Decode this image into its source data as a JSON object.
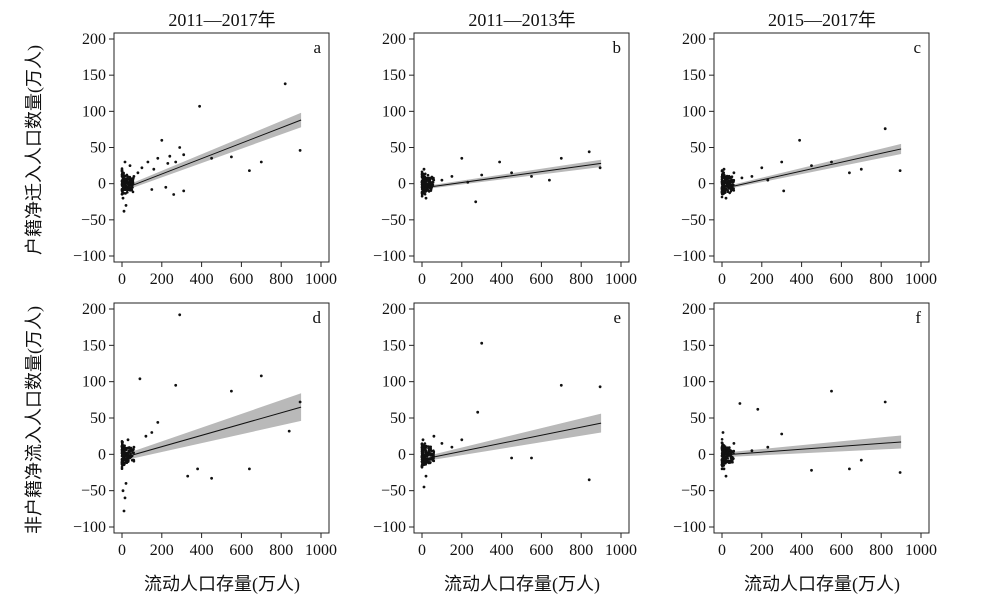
{
  "col_titles": [
    "2011—2017年",
    "2011—2013年",
    "2015—2017年"
  ],
  "row_ylabels": [
    "户籍净迁入人口数量(万人)",
    "非户籍净流入人口数量(万人)"
  ],
  "xlabel": "流动人口存量(万人)",
  "chart_data": [
    {
      "type": "scatter",
      "panel": "a",
      "title": "2011—2017年",
      "xlabel": "",
      "ylabel": "户籍净迁入人口数量(万人)",
      "xlim": [
        0,
        1000
      ],
      "ylim": [
        -100,
        200
      ],
      "xticks": [
        0,
        200,
        400,
        600,
        800,
        1000
      ],
      "yticks": [
        -100,
        -50,
        0,
        50,
        100,
        150,
        200
      ],
      "points": [
        [
          390,
          107
        ],
        [
          820,
          138
        ],
        [
          200,
          60
        ],
        [
          290,
          50
        ],
        [
          895,
          46
        ],
        [
          270,
          30
        ],
        [
          240,
          38
        ],
        [
          310,
          40
        ],
        [
          230,
          28
        ],
        [
          180,
          35
        ],
        [
          130,
          30
        ],
        [
          160,
          20
        ],
        [
          100,
          22
        ],
        [
          450,
          35
        ],
        [
          550,
          37
        ],
        [
          640,
          18
        ],
        [
          700,
          30
        ],
        [
          310,
          -10
        ],
        [
          260,
          -15
        ],
        [
          220,
          -5
        ],
        [
          150,
          -8
        ],
        [
          80,
          15
        ],
        [
          60,
          10
        ],
        [
          40,
          25
        ],
        [
          10,
          -38
        ],
        [
          20,
          -30
        ],
        [
          5,
          -20
        ],
        [
          15,
          30
        ]
      ],
      "fit": {
        "x": [
          0,
          900
        ],
        "y": [
          -8,
          88
        ],
        "ci_lower": [
          -11,
          78
        ],
        "ci_upper": [
          -5,
          98
        ]
      },
      "grid": false
    },
    {
      "type": "scatter",
      "panel": "b",
      "title": "2011—2013年",
      "xlabel": "",
      "ylabel": "",
      "xlim": [
        0,
        1000
      ],
      "ylim": [
        -100,
        200
      ],
      "xticks": [
        0,
        200,
        400,
        600,
        800,
        1000
      ],
      "yticks": [
        -100,
        -50,
        0,
        50,
        100,
        150,
        200
      ],
      "points": [
        [
          840,
          44
        ],
        [
          700,
          35
        ],
        [
          200,
          35
        ],
        [
          390,
          30
        ],
        [
          270,
          -25
        ],
        [
          895,
          22
        ],
        [
          640,
          5
        ],
        [
          150,
          10
        ],
        [
          300,
          12
        ],
        [
          100,
          5
        ],
        [
          50,
          8
        ],
        [
          20,
          -20
        ],
        [
          10,
          20
        ],
        [
          550,
          10
        ],
        [
          230,
          2
        ],
        [
          450,
          15
        ]
      ],
      "fit": {
        "x": [
          0,
          900
        ],
        "y": [
          -6,
          28
        ],
        "ci_lower": [
          -8,
          23
        ],
        "ci_upper": [
          -4,
          33
        ]
      },
      "grid": false
    },
    {
      "type": "scatter",
      "panel": "c",
      "title": "2015—2017年",
      "xlabel": "",
      "ylabel": "",
      "xlim": [
        0,
        1000
      ],
      "ylim": [
        -100,
        200
      ],
      "xticks": [
        0,
        200,
        400,
        600,
        800,
        1000
      ],
      "yticks": [
        -100,
        -50,
        0,
        50,
        100,
        150,
        200
      ],
      "points": [
        [
          390,
          60
        ],
        [
          820,
          76
        ],
        [
          300,
          30
        ],
        [
          895,
          18
        ],
        [
          640,
          15
        ],
        [
          700,
          20
        ],
        [
          310,
          -10
        ],
        [
          200,
          22
        ],
        [
          150,
          10
        ],
        [
          100,
          8
        ],
        [
          60,
          15
        ],
        [
          20,
          -20
        ],
        [
          10,
          20
        ],
        [
          230,
          5
        ],
        [
          450,
          25
        ],
        [
          550,
          30
        ]
      ],
      "fit": {
        "x": [
          0,
          900
        ],
        "y": [
          -7,
          48
        ],
        "ci_lower": [
          -9,
          41
        ],
        "ci_upper": [
          -5,
          55
        ]
      },
      "grid": false
    },
    {
      "type": "scatter",
      "panel": "d",
      "title": "",
      "xlabel": "流动人口存量(万人)",
      "ylabel": "非户籍净流入人口数量(万人)",
      "xlim": [
        0,
        1000
      ],
      "ylim": [
        -100,
        200
      ],
      "xticks": [
        0,
        200,
        400,
        600,
        800,
        1000
      ],
      "yticks": [
        -100,
        -50,
        0,
        50,
        100,
        150,
        200
      ],
      "points": [
        [
          290,
          192
        ],
        [
          90,
          104
        ],
        [
          270,
          95
        ],
        [
          550,
          87
        ],
        [
          700,
          108
        ],
        [
          895,
          72
        ],
        [
          840,
          32
        ],
        [
          180,
          44
        ],
        [
          150,
          30
        ],
        [
          120,
          25
        ],
        [
          640,
          -20
        ],
        [
          450,
          -33
        ],
        [
          330,
          -30
        ],
        [
          380,
          -20
        ],
        [
          30,
          20
        ],
        [
          10,
          -78
        ],
        [
          15,
          -60
        ],
        [
          5,
          -50
        ],
        [
          20,
          -40
        ],
        [
          60,
          10
        ]
      ],
      "fit": {
        "x": [
          0,
          900
        ],
        "y": [
          -5,
          65
        ],
        "ci_lower": [
          -9,
          46
        ],
        "ci_upper": [
          -1,
          84
        ]
      },
      "grid": false
    },
    {
      "type": "scatter",
      "panel": "e",
      "title": "",
      "xlabel": "流动人口存量(万人)",
      "ylabel": "",
      "xlim": [
        0,
        1000
      ],
      "ylim": [
        -100,
        200
      ],
      "xticks": [
        0,
        200,
        400,
        600,
        800,
        1000
      ],
      "yticks": [
        -100,
        -50,
        0,
        50,
        100,
        150,
        200
      ],
      "points": [
        [
          300,
          153
        ],
        [
          280,
          58
        ],
        [
          700,
          95
        ],
        [
          895,
          93
        ],
        [
          840,
          -35
        ],
        [
          200,
          20
        ],
        [
          150,
          10
        ],
        [
          100,
          15
        ],
        [
          450,
          -5
        ],
        [
          550,
          -5
        ],
        [
          60,
          25
        ],
        [
          20,
          -30
        ],
        [
          10,
          -45
        ],
        [
          5,
          20
        ]
      ],
      "fit": {
        "x": [
          0,
          900
        ],
        "y": [
          -7,
          43
        ],
        "ci_lower": [
          -10,
          30
        ],
        "ci_upper": [
          -4,
          56
        ]
      },
      "grid": false
    },
    {
      "type": "scatter",
      "panel": "f",
      "title": "",
      "xlabel": "流动人口存量(万人)",
      "ylabel": "",
      "xlim": [
        0,
        1000
      ],
      "ylim": [
        -100,
        200
      ],
      "xticks": [
        0,
        200,
        400,
        600,
        800,
        1000
      ],
      "yticks": [
        -100,
        -50,
        0,
        50,
        100,
        150,
        200
      ],
      "points": [
        [
          550,
          87
        ],
        [
          820,
          72
        ],
        [
          90,
          70
        ],
        [
          180,
          62
        ],
        [
          895,
          -25
        ],
        [
          640,
          -20
        ],
        [
          450,
          -22
        ],
        [
          300,
          28
        ],
        [
          700,
          -8
        ],
        [
          230,
          10
        ],
        [
          150,
          5
        ],
        [
          60,
          15
        ],
        [
          20,
          -30
        ],
        [
          10,
          -20
        ],
        [
          5,
          30
        ]
      ],
      "fit": {
        "x": [
          0,
          900
        ],
        "y": [
          -1,
          17
        ],
        "ci_lower": [
          -4,
          8
        ],
        "ci_upper": [
          2,
          26
        ]
      },
      "grid": false
    }
  ]
}
